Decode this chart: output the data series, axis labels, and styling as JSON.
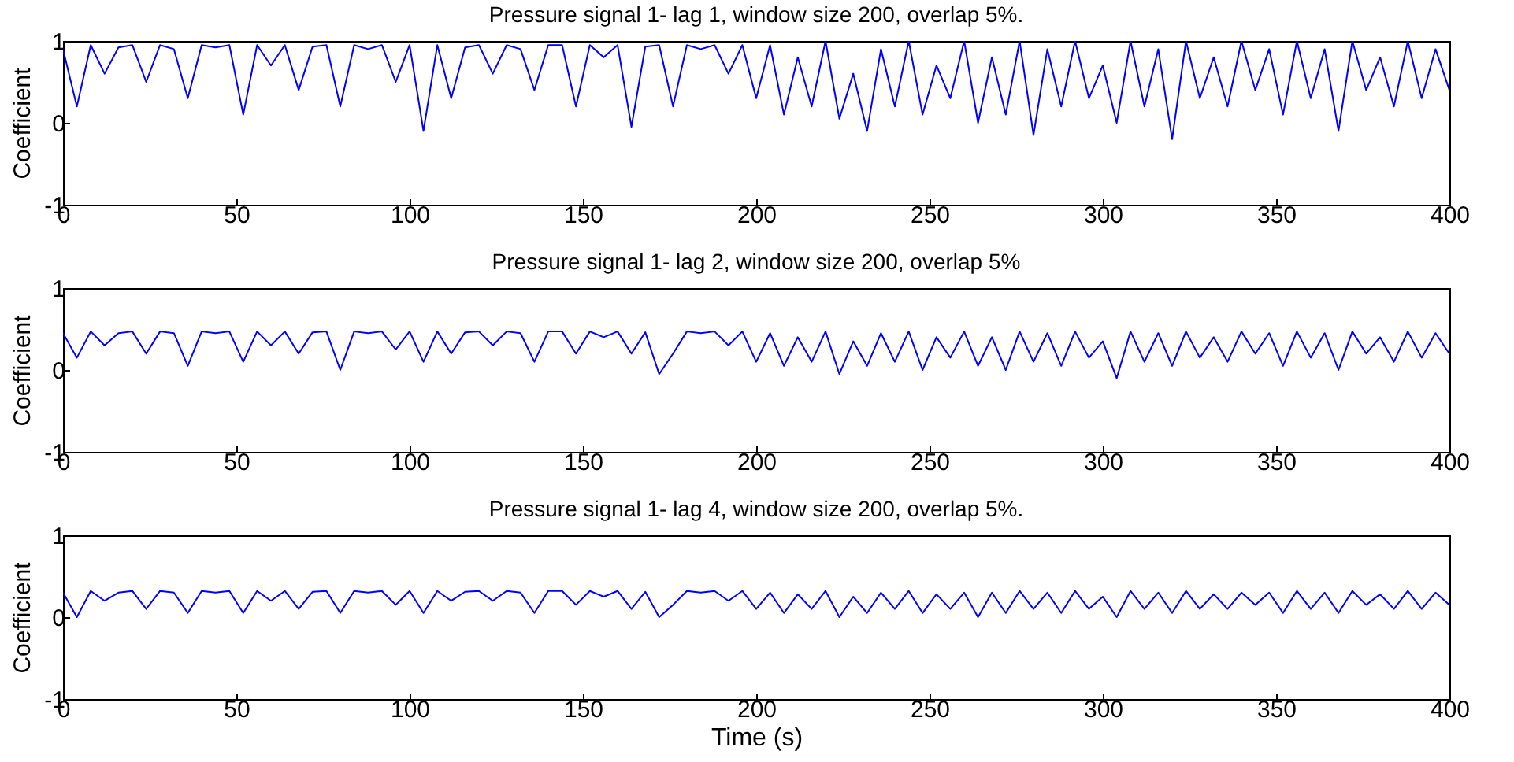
{
  "chart_data": [
    {
      "type": "line",
      "title": "Pressure signal 1- lag 1, window size 200, overlap 5%.",
      "ylabel": "Coefficient",
      "xlim": [
        0,
        400
      ],
      "xticks": [
        0,
        50,
        100,
        150,
        200,
        250,
        300,
        350,
        400
      ],
      "ylim": [
        -1,
        1
      ],
      "yticks": [
        -1,
        0,
        1
      ],
      "x": [
        0,
        4,
        8,
        12,
        16,
        20,
        24,
        28,
        32,
        36,
        40,
        44,
        48,
        52,
        56,
        60,
        64,
        68,
        72,
        76,
        80,
        84,
        88,
        92,
        96,
        100,
        104,
        108,
        112,
        116,
        120,
        124,
        128,
        132,
        136,
        140,
        144,
        148,
        152,
        156,
        160,
        164,
        168,
        172,
        176,
        180,
        184,
        188,
        192,
        196,
        200,
        204,
        208,
        212,
        216,
        220,
        224,
        228,
        232,
        236,
        240,
        244,
        248,
        252,
        256,
        260,
        264,
        268,
        272,
        276,
        280,
        284,
        288,
        292,
        296,
        300,
        304,
        308,
        312,
        316,
        320,
        324,
        328,
        332,
        336,
        340,
        344,
        348,
        352,
        356,
        360,
        364,
        368,
        372,
        376,
        380,
        384,
        388,
        392,
        396,
        400
      ],
      "series": [
        {
          "color": "#0000ff",
          "values": [
            0.9,
            0.2,
            0.95,
            0.6,
            0.92,
            0.95,
            0.5,
            0.95,
            0.9,
            0.3,
            0.95,
            0.92,
            0.95,
            0.1,
            0.95,
            0.7,
            0.95,
            0.4,
            0.93,
            0.95,
            0.2,
            0.95,
            0.9,
            0.95,
            0.5,
            0.95,
            -0.1,
            0.95,
            0.3,
            0.92,
            0.95,
            0.6,
            0.95,
            0.9,
            0.4,
            0.95,
            0.95,
            0.2,
            0.95,
            0.8,
            0.95,
            -0.05,
            0.93,
            0.95,
            0.2,
            0.95,
            0.9,
            0.95,
            0.6,
            0.95,
            0.3,
            0.95,
            0.1,
            0.8,
            0.2,
            1,
            0.05,
            0.6,
            -0.1,
            0.9,
            0.2,
            1,
            0.1,
            0.7,
            0.3,
            1,
            0,
            0.8,
            0.1,
            1,
            -0.15,
            0.9,
            0.2,
            1,
            0.3,
            0.7,
            0,
            1,
            0.2,
            0.9,
            -0.2,
            1,
            0.3,
            0.8,
            0.2,
            1,
            0.4,
            0.9,
            0.1,
            1,
            0.3,
            0.9,
            -0.1,
            1,
            0.4,
            0.8,
            0.2,
            1,
            0.3,
            0.9,
            0.4
          ]
        }
      ]
    },
    {
      "type": "line",
      "title": "Pressure signal 1- lag 2, window size 200, overlap 5%",
      "ylabel": "Coefficient",
      "xlim": [
        0,
        400
      ],
      "xticks": [
        0,
        50,
        100,
        150,
        200,
        250,
        300,
        350,
        400
      ],
      "ylim": [
        -1,
        1
      ],
      "yticks": [
        -1,
        0,
        1
      ],
      "x": [
        0,
        4,
        8,
        12,
        16,
        20,
        24,
        28,
        32,
        36,
        40,
        44,
        48,
        52,
        56,
        60,
        64,
        68,
        72,
        76,
        80,
        84,
        88,
        92,
        96,
        100,
        104,
        108,
        112,
        116,
        120,
        124,
        128,
        132,
        136,
        140,
        144,
        148,
        152,
        156,
        160,
        164,
        168,
        172,
        176,
        180,
        184,
        188,
        192,
        196,
        200,
        204,
        208,
        212,
        216,
        220,
        224,
        228,
        232,
        236,
        240,
        244,
        248,
        252,
        256,
        260,
        264,
        268,
        272,
        276,
        280,
        284,
        288,
        292,
        296,
        300,
        304,
        308,
        312,
        316,
        320,
        324,
        328,
        332,
        336,
        340,
        344,
        348,
        352,
        356,
        360,
        364,
        368,
        372,
        376,
        380,
        384,
        388,
        392,
        396,
        400
      ],
      "series": [
        {
          "color": "#0000ff",
          "values": [
            0.45,
            0.15,
            0.47,
            0.3,
            0.45,
            0.47,
            0.2,
            0.47,
            0.45,
            0.05,
            0.47,
            0.45,
            0.47,
            0.1,
            0.47,
            0.3,
            0.47,
            0.2,
            0.46,
            0.47,
            0.0,
            0.47,
            0.45,
            0.47,
            0.25,
            0.47,
            0.1,
            0.47,
            0.2,
            0.46,
            0.47,
            0.3,
            0.47,
            0.45,
            0.1,
            0.47,
            0.47,
            0.2,
            0.47,
            0.4,
            0.47,
            0.2,
            0.46,
            -0.05,
            0.2,
            0.47,
            0.45,
            0.47,
            0.3,
            0.47,
            0.1,
            0.45,
            0.05,
            0.4,
            0.1,
            0.47,
            -0.05,
            0.35,
            0.05,
            0.45,
            0.1,
            0.47,
            0.0,
            0.4,
            0.15,
            0.47,
            0.05,
            0.4,
            0.0,
            0.47,
            0.1,
            0.45,
            0.05,
            0.47,
            0.15,
            0.35,
            -0.1,
            0.47,
            0.1,
            0.45,
            0.05,
            0.47,
            0.15,
            0.4,
            0.1,
            0.47,
            0.2,
            0.45,
            0.05,
            0.47,
            0.15,
            0.45,
            0.0,
            0.47,
            0.2,
            0.4,
            0.1,
            0.47,
            0.15,
            0.45,
            0.2
          ]
        }
      ]
    },
    {
      "type": "line",
      "title": "Pressure signal 1- lag 4, window size 200, overlap 5%.",
      "xlabel": "Time (s)",
      "ylabel": "Coefficient",
      "xlim": [
        0,
        400
      ],
      "xticks": [
        0,
        50,
        100,
        150,
        200,
        250,
        300,
        350,
        400
      ],
      "ylim": [
        -1,
        1
      ],
      "yticks": [
        -1,
        0,
        1
      ],
      "x": [
        0,
        4,
        8,
        12,
        16,
        20,
        24,
        28,
        32,
        36,
        40,
        44,
        48,
        52,
        56,
        60,
        64,
        68,
        72,
        76,
        80,
        84,
        88,
        92,
        96,
        100,
        104,
        108,
        112,
        116,
        120,
        124,
        128,
        132,
        136,
        140,
        144,
        148,
        152,
        156,
        160,
        164,
        168,
        172,
        176,
        180,
        184,
        188,
        192,
        196,
        200,
        204,
        208,
        212,
        216,
        220,
        224,
        228,
        232,
        236,
        240,
        244,
        248,
        252,
        256,
        260,
        264,
        268,
        272,
        276,
        280,
        284,
        288,
        292,
        296,
        300,
        304,
        308,
        312,
        316,
        320,
        324,
        328,
        332,
        336,
        340,
        344,
        348,
        352,
        356,
        360,
        364,
        368,
        372,
        376,
        380,
        384,
        388,
        392,
        396,
        400
      ],
      "series": [
        {
          "color": "#0000ff",
          "values": [
            0.3,
            0.0,
            0.32,
            0.2,
            0.3,
            0.32,
            0.1,
            0.32,
            0.3,
            0.05,
            0.32,
            0.3,
            0.32,
            0.05,
            0.32,
            0.2,
            0.32,
            0.1,
            0.31,
            0.32,
            0.05,
            0.32,
            0.3,
            0.32,
            0.15,
            0.32,
            0.05,
            0.32,
            0.2,
            0.31,
            0.32,
            0.2,
            0.32,
            0.3,
            0.05,
            0.32,
            0.32,
            0.15,
            0.32,
            0.25,
            0.32,
            0.1,
            0.31,
            0.0,
            0.15,
            0.32,
            0.3,
            0.32,
            0.2,
            0.32,
            0.1,
            0.3,
            0.05,
            0.28,
            0.1,
            0.32,
            0.0,
            0.25,
            0.05,
            0.3,
            0.1,
            0.32,
            0.05,
            0.28,
            0.1,
            0.3,
            0.0,
            0.3,
            0.05,
            0.32,
            0.1,
            0.3,
            0.05,
            0.32,
            0.1,
            0.25,
            0.0,
            0.32,
            0.1,
            0.3,
            0.05,
            0.32,
            0.1,
            0.28,
            0.1,
            0.3,
            0.15,
            0.3,
            0.05,
            0.32,
            0.1,
            0.3,
            0.05,
            0.32,
            0.15,
            0.28,
            0.1,
            0.32,
            0.1,
            0.3,
            0.15
          ]
        }
      ]
    }
  ]
}
